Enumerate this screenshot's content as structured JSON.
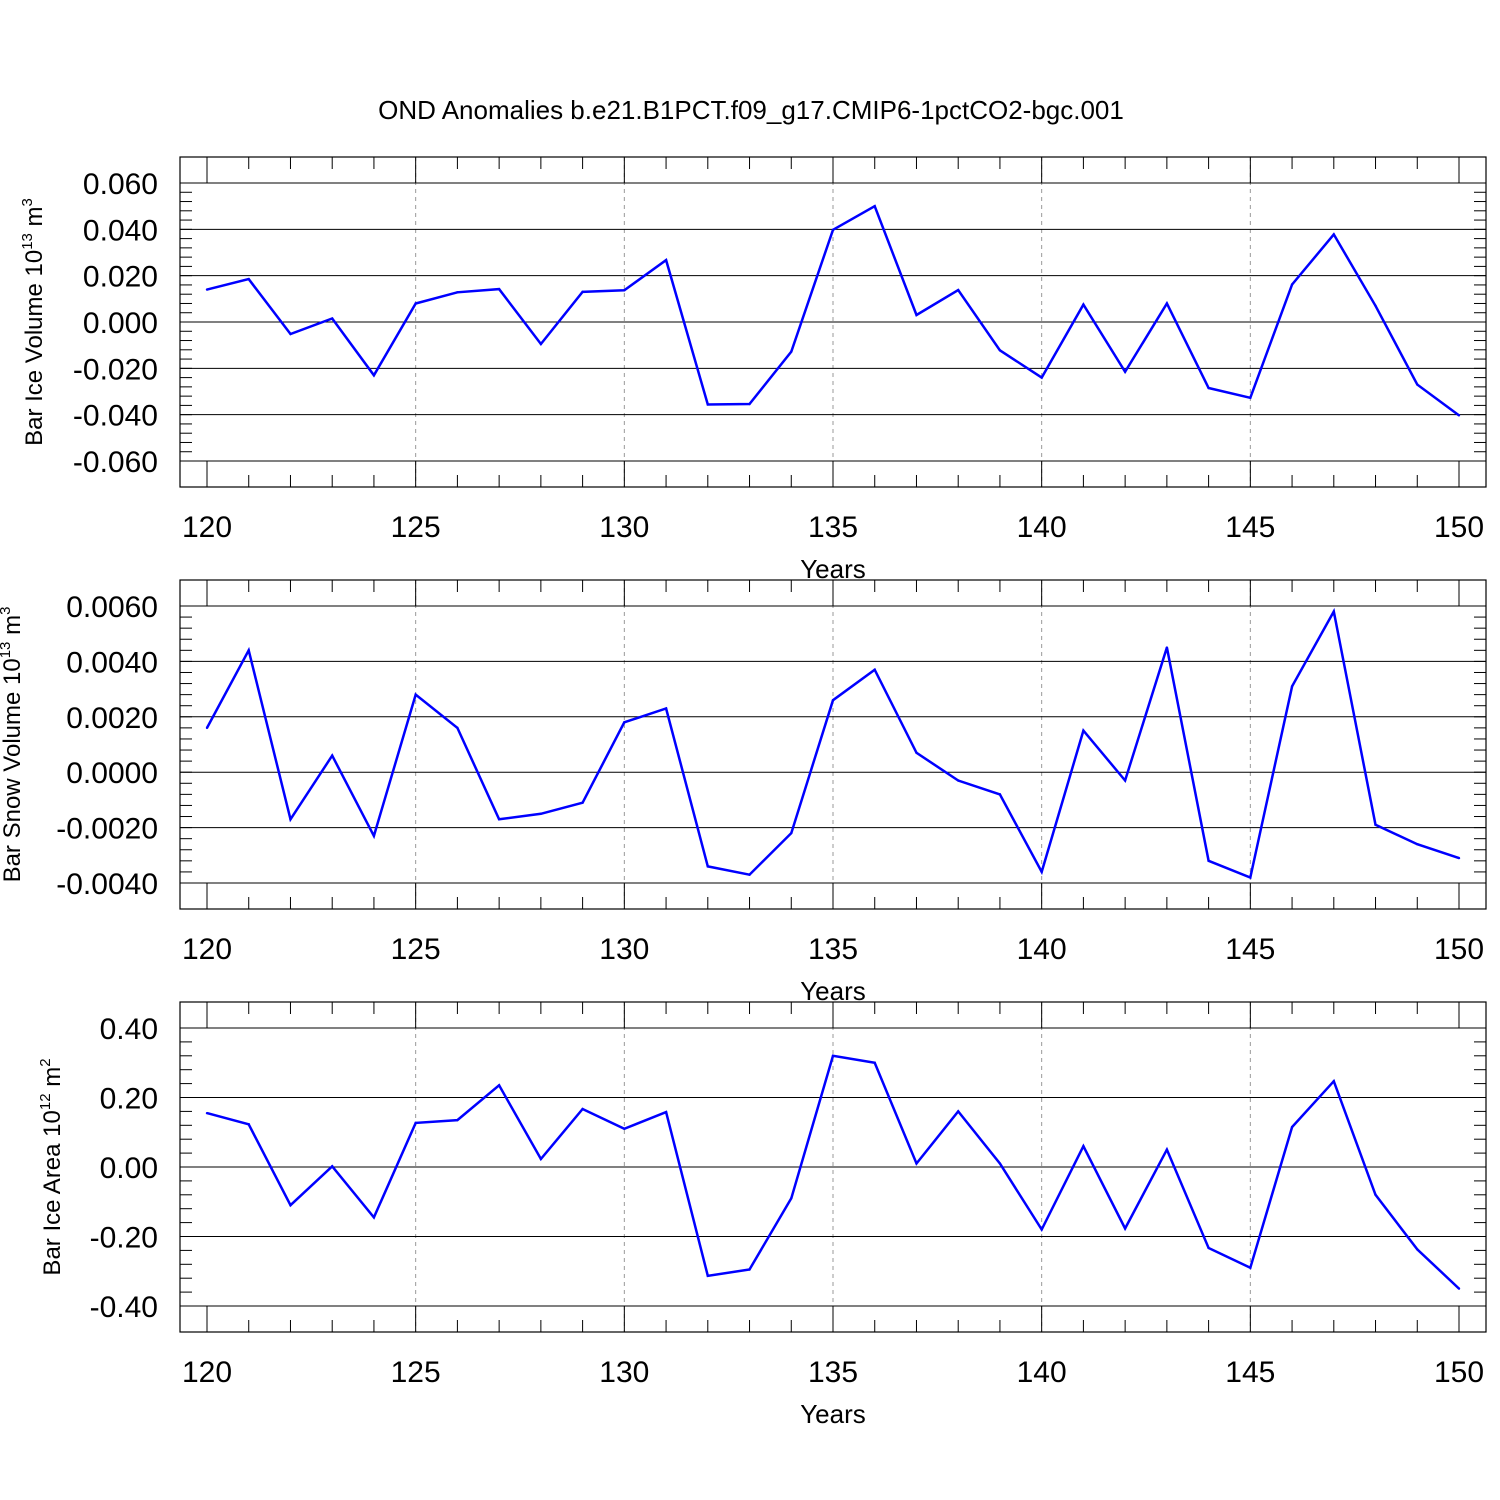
{
  "title": "OND Anomalies b.e21.B1PCT.f09_g17.CMIP6-1pctCO2-bgc.001",
  "colors": {
    "series": "#0000ff",
    "axis": "#000000",
    "grid": "#999999"
  },
  "chart_data": [
    {
      "type": "line",
      "xlabel": "Years",
      "ylabel": {
        "prefix": "Bar Ice Volume 10",
        "exp": "13",
        "mid": " m",
        "unit_exp": "3"
      },
      "xlim": [
        120,
        150
      ],
      "ylim": [
        -0.06,
        0.06
      ],
      "xticks": [
        "120",
        "125",
        "130",
        "135",
        "140",
        "145",
        "150"
      ],
      "yticks": [
        {
          "value": 0.06,
          "label": "0.060"
        },
        {
          "value": 0.04,
          "label": "0.040"
        },
        {
          "value": 0.02,
          "label": "0.020"
        },
        {
          "value": 0.0,
          "label": "0.000"
        },
        {
          "value": -0.02,
          "label": "-0.020"
        },
        {
          "value": -0.04,
          "label": "-0.040"
        },
        {
          "value": -0.06,
          "label": "-0.060"
        }
      ],
      "x": [
        120,
        121,
        122,
        123,
        124,
        125,
        126,
        127,
        128,
        129,
        130,
        131,
        132,
        133,
        134,
        135,
        136,
        137,
        138,
        139,
        140,
        141,
        142,
        143,
        144,
        145,
        146,
        147,
        148,
        149,
        150
      ],
      "y": [
        0.014,
        0.0185,
        -0.0052,
        0.0015,
        -0.023,
        0.008,
        0.0128,
        0.0142,
        -0.0095,
        0.013,
        0.0137,
        0.0267,
        -0.0356,
        -0.0354,
        -0.0128,
        0.0398,
        0.05,
        0.003,
        0.0138,
        -0.0122,
        -0.024,
        0.0075,
        -0.0215,
        0.008,
        -0.0285,
        -0.0327,
        0.0162,
        0.0378,
        0.007,
        -0.027,
        -0.0403
      ]
    },
    {
      "type": "line",
      "xlabel": "Years",
      "ylabel": {
        "prefix": "Bar Snow Volume 10",
        "exp": "13",
        "mid": " m",
        "unit_exp": "3"
      },
      "xlim": [
        120,
        150
      ],
      "ylim": [
        -0.004,
        0.006
      ],
      "xticks": [
        "120",
        "125",
        "130",
        "135",
        "140",
        "145",
        "150"
      ],
      "yticks": [
        {
          "value": 0.006,
          "label": "0.0060"
        },
        {
          "value": 0.004,
          "label": "0.0040"
        },
        {
          "value": 0.002,
          "label": "0.0020"
        },
        {
          "value": 0.0,
          "label": "0.0000"
        },
        {
          "value": -0.002,
          "label": "-0.0020"
        },
        {
          "value": -0.004,
          "label": "-0.0040"
        }
      ],
      "x": [
        120,
        121,
        122,
        123,
        124,
        125,
        126,
        127,
        128,
        129,
        130,
        131,
        132,
        133,
        134,
        135,
        136,
        137,
        138,
        139,
        140,
        141,
        142,
        143,
        144,
        145,
        146,
        147,
        148,
        149,
        150
      ],
      "y": [
        0.0016,
        0.0044,
        -0.0017,
        0.0006,
        -0.0023,
        0.0028,
        0.0016,
        -0.0017,
        -0.0015,
        -0.0011,
        0.0018,
        0.0023,
        -0.0034,
        -0.0037,
        -0.0022,
        0.0026,
        0.0037,
        0.0007,
        -0.0003,
        -0.0008,
        -0.0036,
        0.0015,
        -0.0003,
        0.0045,
        -0.0032,
        -0.0038,
        0.0031,
        0.0058,
        -0.0019,
        -0.0026,
        -0.0031
      ]
    },
    {
      "type": "line",
      "xlabel": "Years",
      "ylabel": {
        "prefix": "Bar Ice Area 10",
        "exp": "12",
        "mid": " m",
        "unit_exp": "2"
      },
      "xlim": [
        120,
        150
      ],
      "ylim": [
        -0.4,
        0.4
      ],
      "xticks": [
        "120",
        "125",
        "130",
        "135",
        "140",
        "145",
        "150"
      ],
      "yticks": [
        {
          "value": 0.4,
          "label": "0.40"
        },
        {
          "value": 0.2,
          "label": "0.20"
        },
        {
          "value": 0.0,
          "label": "0.00"
        },
        {
          "value": -0.2,
          "label": "-0.20"
        },
        {
          "value": -0.4,
          "label": "-0.40"
        }
      ],
      "x": [
        120,
        121,
        122,
        123,
        124,
        125,
        126,
        127,
        128,
        129,
        130,
        131,
        132,
        133,
        134,
        135,
        136,
        137,
        138,
        139,
        140,
        141,
        142,
        143,
        144,
        145,
        146,
        147,
        148,
        149,
        150
      ],
      "y": [
        0.155,
        0.123,
        -0.11,
        0.002,
        -0.145,
        0.127,
        0.135,
        0.235,
        0.023,
        0.167,
        0.11,
        0.158,
        -0.313,
        -0.295,
        -0.09,
        0.32,
        0.3,
        0.01,
        0.16,
        0.01,
        -0.18,
        0.06,
        -0.177,
        0.05,
        -0.233,
        -0.29,
        0.115,
        0.247,
        -0.08,
        -0.237,
        -0.35
      ]
    }
  ]
}
